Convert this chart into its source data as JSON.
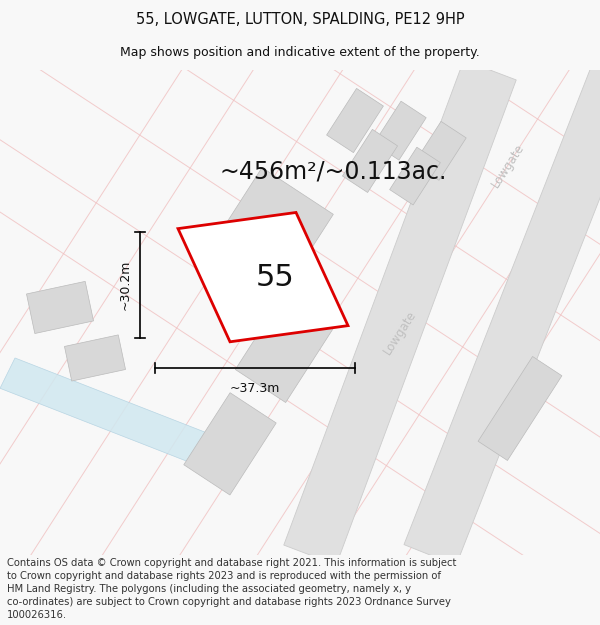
{
  "title_line1": "55, LOWGATE, LUTTON, SPALDING, PE12 9HP",
  "title_line2": "Map shows position and indicative extent of the property.",
  "area_text": "~456m²/~0.113ac.",
  "label_55": "55",
  "dim_height": "~30.2m",
  "dim_width": "~37.3m",
  "footer_text": "Contains OS data © Crown copyright and database right 2021. This information is subject to Crown copyright and database rights 2023 and is reproduced with the permission of HM Land Registry. The polygons (including the associated geometry, namely x, y co-ordinates) are subject to Crown copyright and database rights 2023 Ordnance Survey 100026316.",
  "bg_color": "#f8f8f8",
  "map_bg": "#ffffff",
  "road_color_light": "#f0c0c0",
  "road_fill": "#e0e0e0",
  "road_edge": "#cccccc",
  "highlight_color": "#dd0000",
  "text_color": "#111111",
  "footer_color": "#333333",
  "road_label_color": "#c0c0c0",
  "building_fill": "#d8d8d8",
  "building_edge": "#bbbbbb",
  "water_fill": "#d0e8f0",
  "water_edge": "#b0d0e0",
  "title_fontsize": 10.5,
  "subtitle_fontsize": 9,
  "area_fontsize": 17,
  "label55_fontsize": 22,
  "dim_fontsize": 9,
  "footer_fontsize": 7.2
}
